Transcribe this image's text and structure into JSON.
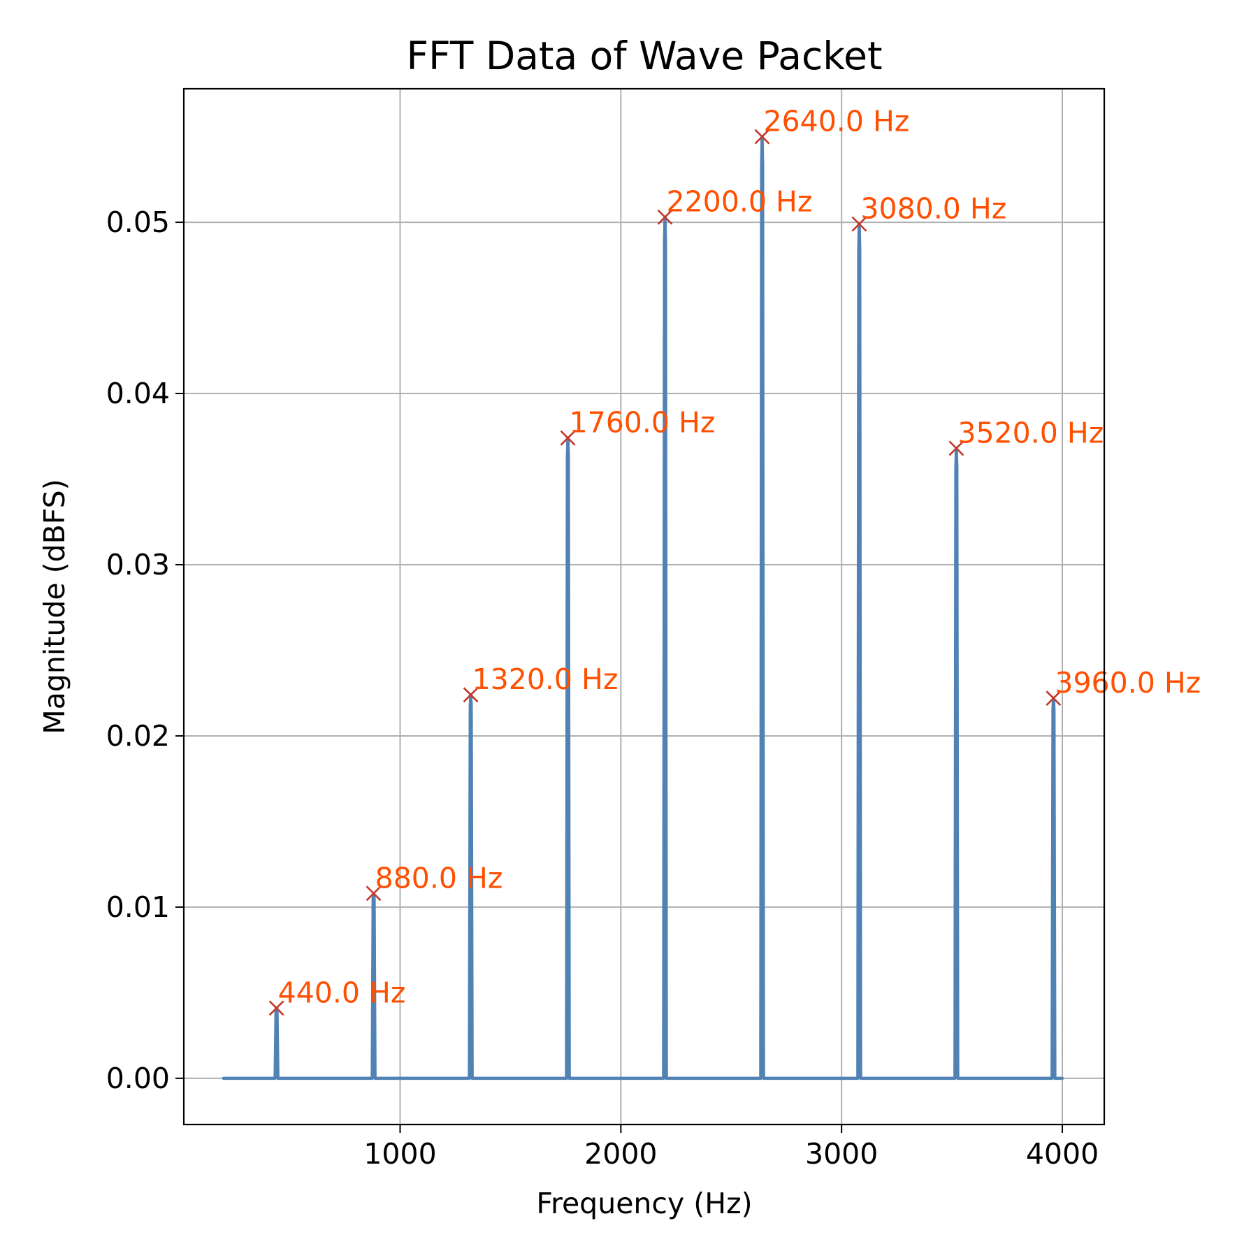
{
  "colors": {
    "line": "#5083b4",
    "marker": "#c0392b",
    "peak_label": "#ff4f00",
    "grid": "#b0b0b0",
    "axes": "#000000"
  },
  "chart_data": {
    "type": "line",
    "title": "FFT Data of Wave Packet",
    "xlabel": "Frequency (Hz)",
    "ylabel": "Magnitude (dBFS)",
    "xlim": [
      20,
      4190
    ],
    "ylim": [
      -0.0027,
      0.0578
    ],
    "grid": true,
    "x_ticks": [
      1000,
      2000,
      3000,
      4000
    ],
    "x_tick_labels": [
      "1000",
      "2000",
      "3000",
      "4000"
    ],
    "y_ticks": [
      0.0,
      0.01,
      0.02,
      0.03,
      0.04,
      0.05
    ],
    "y_tick_labels": [
      "0.00",
      "0.01",
      "0.02",
      "0.03",
      "0.04",
      "0.05"
    ],
    "baseline_range": [
      200,
      4000
    ],
    "series": [
      {
        "peaks": [
          {
            "x": 440,
            "y": 0.0041,
            "label": "440.0 Hz"
          },
          {
            "x": 880,
            "y": 0.0108,
            "label": "880.0 Hz"
          },
          {
            "x": 1320,
            "y": 0.0224,
            "label": "1320.0 Hz"
          },
          {
            "x": 1760,
            "y": 0.0374,
            "label": "1760.0 Hz"
          },
          {
            "x": 2200,
            "y": 0.0503,
            "label": "2200.0 Hz"
          },
          {
            "x": 2640,
            "y": 0.055,
            "label": "2640.0 Hz"
          },
          {
            "x": 3080,
            "y": 0.0499,
            "label": "3080.0 Hz"
          },
          {
            "x": 3520,
            "y": 0.0368,
            "label": "3520.0 Hz"
          },
          {
            "x": 3960,
            "y": 0.0222,
            "label": "3960.0 Hz"
          }
        ]
      }
    ]
  }
}
